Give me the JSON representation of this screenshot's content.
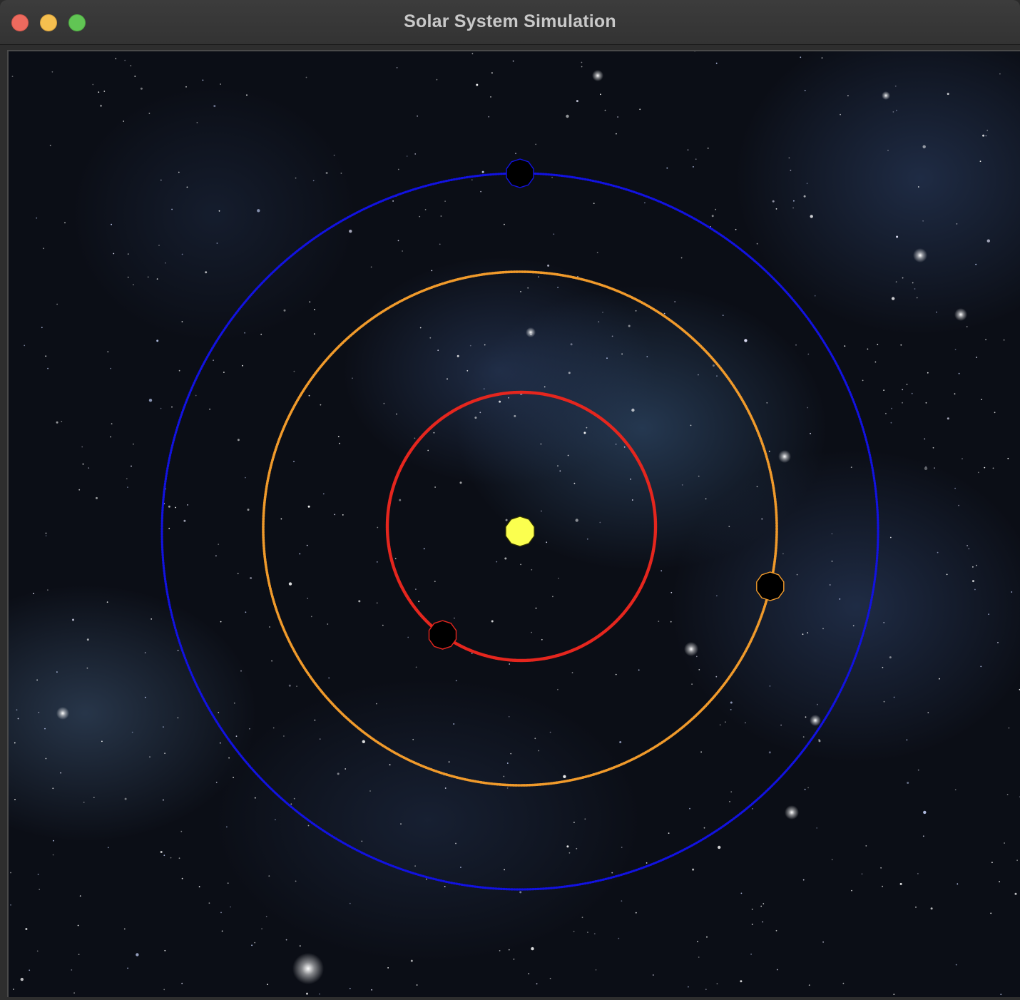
{
  "window": {
    "title": "Solar System Simulation"
  },
  "colors": {
    "background": "#0b0e16",
    "sun_fill": "#fbff4f",
    "planet_fill": "#000000",
    "orbit_inner": "#e5261e",
    "orbit_middle": "#f09a2b",
    "orbit_outer": "#1212e0"
  },
  "simulation": {
    "bodies": [
      {
        "name": "sun",
        "kind": "star",
        "color": "#fbff4f"
      },
      {
        "name": "planet-inner",
        "orbit_color": "#e5261e",
        "angle_deg": 234
      },
      {
        "name": "planet-middle",
        "orbit_color": "#f09a2b",
        "angle_deg": -13
      },
      {
        "name": "planet-outer",
        "orbit_color": "#1212e0",
        "angle_deg": 90
      }
    ]
  }
}
